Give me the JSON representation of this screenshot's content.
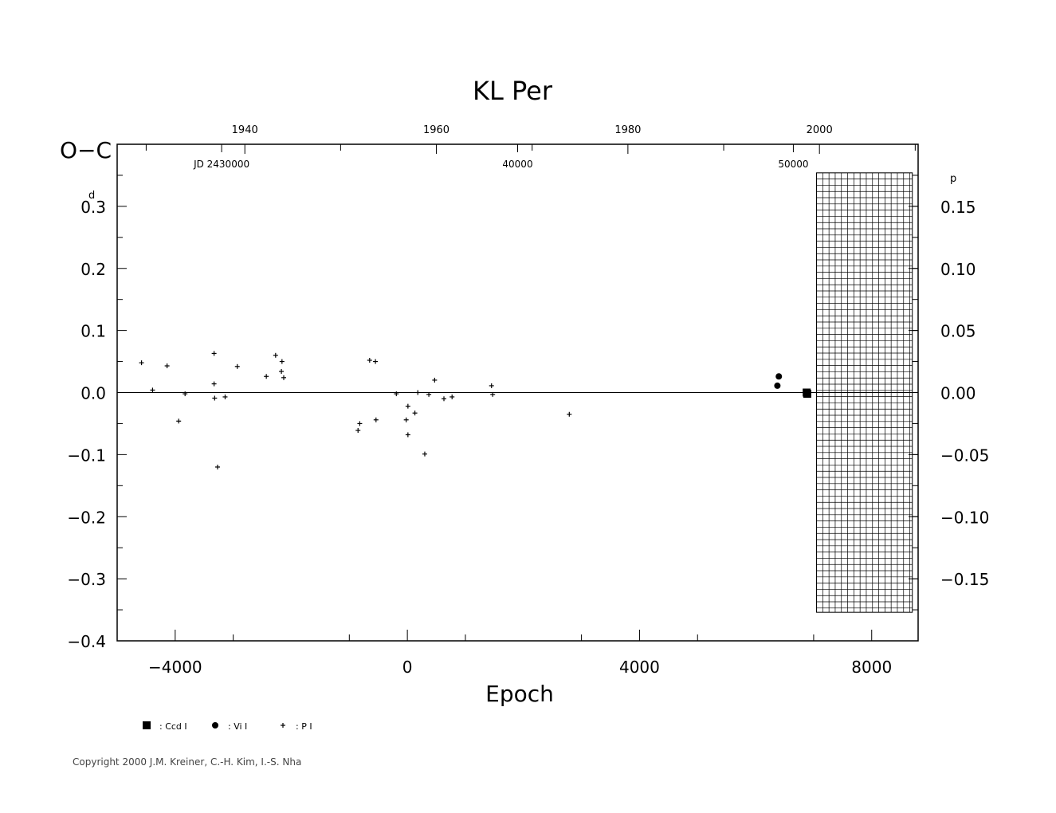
{
  "chart_data": {
    "type": "scatter",
    "title": "KL Per",
    "xlabel": "Epoch",
    "ylabel": "O−C",
    "y_unit": "d",
    "y2_unit": "p",
    "xlim": [
      -5000,
      8800
    ],
    "ylim": [
      -0.4,
      0.4
    ],
    "y2lim": [
      -0.2,
      0.2
    ],
    "x_ticks": [
      -4000,
      0,
      4000,
      8000
    ],
    "x_tick_labels": [
      "−4000",
      "0",
      "4000",
      "8000"
    ],
    "y_ticks": [
      0.3,
      0.2,
      0.1,
      0.0,
      -0.1,
      -0.2,
      -0.3,
      -0.4
    ],
    "y_tick_labels": [
      "0.3",
      "0.2",
      "0.1",
      "0.0",
      "−0.1",
      "−0.2",
      "−0.3",
      "−0.4"
    ],
    "y2_ticks": [
      0.15,
      0.1,
      0.05,
      0.0,
      -0.05,
      -0.1,
      -0.15
    ],
    "y2_tick_labels": [
      "0.15",
      "0.10",
      "0.05",
      "0.00",
      "−0.05",
      "−0.10",
      "−0.15"
    ],
    "top_year_ticks": [
      {
        "epoch": -2800,
        "label": "1940"
      },
      {
        "epoch": 500,
        "label": "1960"
      },
      {
        "epoch": 3800,
        "label": "1980"
      },
      {
        "epoch": 7100,
        "label": "2000"
      }
    ],
    "top_year_minor_epochs": [
      -4500,
      -1150,
      2150,
      5450,
      8750
    ],
    "jd_ticks": [
      {
        "epoch": -3200,
        "label": "JD 2430000"
      },
      {
        "epoch": 1900,
        "label": "40000"
      },
      {
        "epoch": 6650,
        "label": "50000"
      }
    ],
    "shaded_region": {
      "x_start": 7050,
      "x_end": 8700,
      "y_start": 0.354,
      "y_end": -0.354
    },
    "zero_line": true,
    "series": [
      {
        "name": "Ccd I",
        "marker": "square",
        "points": [
          [
            6880,
            0.0
          ],
          [
            6890,
            -0.002
          ]
        ]
      },
      {
        "name": "Vi I",
        "marker": "circle",
        "points": [
          [
            6400,
            0.026
          ],
          [
            6375,
            0.011
          ]
        ]
      },
      {
        "name": "P I",
        "marker": "plus",
        "points": [
          [
            -4580,
            0.048
          ],
          [
            -4390,
            0.004
          ],
          [
            -4140,
            0.043
          ],
          [
            -3940,
            -0.046
          ],
          [
            -3830,
            -0.002
          ],
          [
            -3330,
            0.063
          ],
          [
            -3330,
            0.014
          ],
          [
            -3320,
            -0.009
          ],
          [
            -3270,
            -0.12
          ],
          [
            -3140,
            -0.007
          ],
          [
            -2930,
            0.042
          ],
          [
            -2430,
            0.026
          ],
          [
            -2270,
            0.06
          ],
          [
            -2170,
            0.034
          ],
          [
            -2160,
            0.05
          ],
          [
            -2130,
            0.024
          ],
          [
            -850,
            -0.061
          ],
          [
            -820,
            -0.05
          ],
          [
            -650,
            0.052
          ],
          [
            -550,
            0.05
          ],
          [
            -540,
            -0.044
          ],
          [
            -190,
            -0.002
          ],
          [
            -20,
            -0.044
          ],
          [
            10,
            -0.022
          ],
          [
            10,
            -0.068
          ],
          [
            130,
            -0.033
          ],
          [
            180,
            0.0
          ],
          [
            300,
            -0.099
          ],
          [
            370,
            -0.003
          ],
          [
            470,
            0.02
          ],
          [
            630,
            -0.01
          ],
          [
            770,
            -0.007
          ],
          [
            1450,
            0.011
          ],
          [
            1470,
            -0.003
          ],
          [
            2790,
            -0.035
          ]
        ]
      }
    ],
    "legend": [
      {
        "marker": "square",
        "label": ": Ccd I"
      },
      {
        "marker": "circle",
        "label": ": Vi I"
      },
      {
        "marker": "plus",
        "label": ": P I"
      }
    ]
  },
  "footer": {
    "copyright": "Copyright 2000 J.M. Kreiner, C.-H. Kim, I.-S. Nha"
  }
}
